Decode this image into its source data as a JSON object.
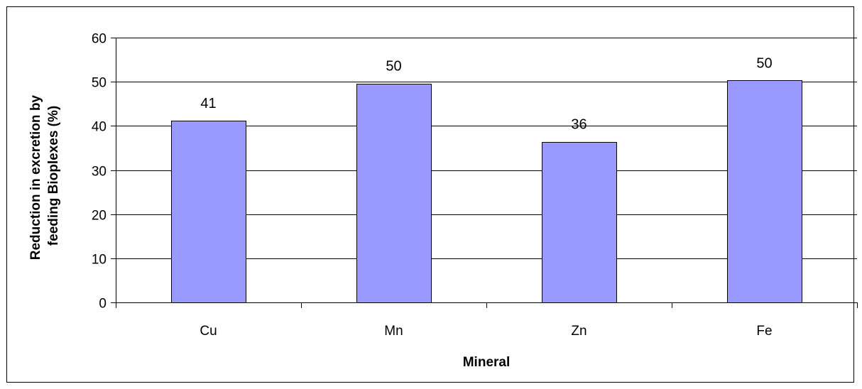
{
  "chart_data": {
    "type": "bar",
    "categories": [
      "Cu",
      "Mn",
      "Zn",
      "Fe"
    ],
    "values": [
      41,
      50,
      36,
      50
    ],
    "precise_values": [
      41.2,
      49.6,
      36.4,
      50.3
    ],
    "data_labels": [
      "41",
      "50",
      "36",
      "50"
    ],
    "title": "",
    "xlabel": "Mineral",
    "ylabel_lines": [
      "Reduction in excretion by",
      "feeding Bioplexes (%)"
    ],
    "ylim": [
      0,
      60
    ],
    "yticks": [
      0,
      10,
      20,
      30,
      40,
      50,
      60
    ],
    "grid": true,
    "legend": "none",
    "bar_color": "#9999FF",
    "bar_border_color": "#000000",
    "grid_color": "#000000"
  }
}
